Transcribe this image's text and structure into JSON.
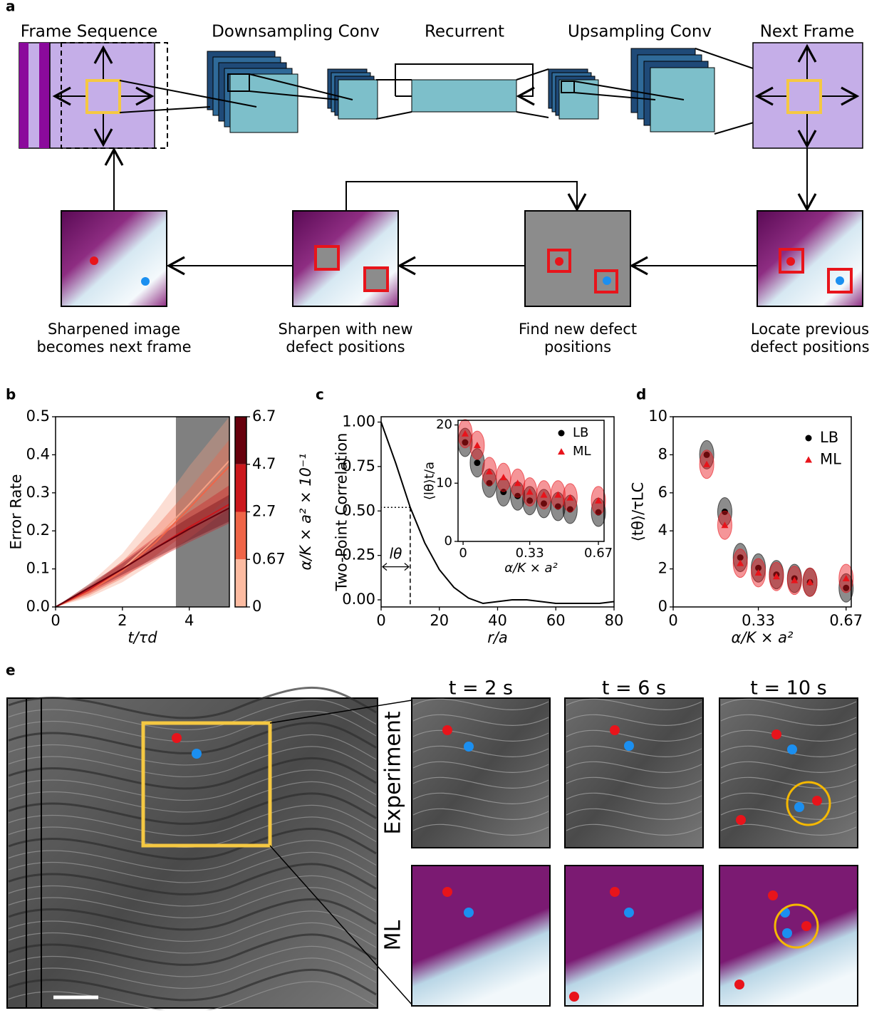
{
  "panel_labels": [
    "a",
    "b",
    "c",
    "d",
    "e"
  ],
  "diagram": {
    "stages": [
      "Frame Sequence",
      "Downsampling Conv",
      "Recurrent",
      "Upsampling Conv",
      "Next Frame"
    ],
    "steps": [
      [
        "Sharpened image",
        "becomes next frame"
      ],
      [
        "Sharpen with new",
        "defect positions"
      ],
      [
        "Find new defect",
        "positions"
      ],
      [
        "Locate previous",
        "defect positions"
      ]
    ]
  },
  "chart_data": [
    {
      "type": "line",
      "ylabel": "Error Rate",
      "xlabel": "t/τd",
      "x": [
        0,
        1,
        2,
        3,
        4,
        5.2
      ],
      "xlim": [
        0,
        5.2
      ],
      "ylim": [
        0,
        0.5
      ],
      "xticks": [
        0,
        2,
        4
      ],
      "yticks": [
        {
          "value": 0,
          "label": "0.0"
        },
        0.1,
        0.2,
        0.3,
        0.4,
        0.5
      ],
      "shaded_region": [
        3.6,
        5.2
      ],
      "shaded_color": "#808080",
      "series": [
        {
          "color": "#f7a184",
          "values": [
            0,
            0.04,
            0.1,
            0.18,
            0.27,
            0.385
          ],
          "lower": [
            0,
            0.025,
            0.065,
            0.12,
            0.18,
            0.26
          ],
          "upper": [
            0,
            0.06,
            0.14,
            0.25,
            0.37,
            0.5
          ]
        },
        {
          "color": "#ef6548",
          "values": [
            0,
            0.04,
            0.095,
            0.17,
            0.26,
            0.37
          ],
          "lower": [
            0,
            0.03,
            0.075,
            0.135,
            0.2,
            0.29
          ],
          "upper": [
            0,
            0.05,
            0.12,
            0.21,
            0.31,
            0.44
          ]
        },
        {
          "color": "#cb181d",
          "values": [
            0,
            0.045,
            0.1,
            0.155,
            0.21,
            0.27
          ],
          "lower": [
            0,
            0.035,
            0.08,
            0.125,
            0.17,
            0.22
          ],
          "upper": [
            0,
            0.055,
            0.12,
            0.185,
            0.25,
            0.32
          ]
        },
        {
          "color": "#67000d",
          "values": [
            0,
            0.05,
            0.1,
            0.155,
            0.205,
            0.26
          ],
          "lower": [
            0,
            0.04,
            0.085,
            0.13,
            0.175,
            0.225
          ],
          "upper": [
            0,
            0.06,
            0.115,
            0.18,
            0.235,
            0.295
          ]
        }
      ],
      "colorbar": {
        "label": "α/K × a² × 10⁻¹",
        "ticks": [
          6.7,
          4.7,
          2.7,
          0.67,
          0
        ],
        "colors": [
          "#67000d",
          "#cb181d",
          "#ef6548",
          "#fcbba1"
        ]
      }
    },
    {
      "type": "line",
      "ylabel": "Two-Point Correlation",
      "xlabel": "r/a",
      "x": [
        0,
        5,
        10,
        15,
        20,
        25,
        30,
        35,
        40,
        45,
        50,
        55,
        60,
        65,
        70,
        75,
        80
      ],
      "values": [
        1,
        0.77,
        0.52,
        0.32,
        0.17,
        0.07,
        0.01,
        -0.02,
        -0.01,
        0,
        0,
        -0.01,
        -0.02,
        -0.02,
        -0.02,
        -0.02,
        -0.01
      ],
      "color": "#000000",
      "xlim": [
        0,
        80
      ],
      "ylim": [
        -0.04,
        1.03
      ],
      "xticks": [
        0,
        20,
        40,
        60,
        80
      ],
      "yticks": [
        {
          "value": 0,
          "label": "0.00"
        },
        {
          "value": 0.25,
          "label": "0.25"
        },
        {
          "value": 0.5,
          "label": "0.50"
        },
        {
          "value": 0.75,
          "label": "0.75"
        },
        {
          "value": 1,
          "label": "1.00"
        }
      ],
      "annotation": {
        "text": "lθ",
        "x": 10,
        "y": 0.52
      },
      "inset": {
        "type": "scatter",
        "ylabel": "⟨lθ⟩t/a",
        "xlabel": "α/K × a²",
        "x": [
          0.01,
          0.07,
          0.13,
          0.2,
          0.27,
          0.33,
          0.4,
          0.47,
          0.53,
          0.67
        ],
        "xlim": [
          -0.025,
          0.698
        ],
        "ylim": [
          0,
          20.8
        ],
        "xticks": [
          0,
          0.33,
          0.67
        ],
        "yticks": [
          0,
          10,
          20
        ],
        "legend": "upper right",
        "series": [
          {
            "name": "LB",
            "color": "#000000",
            "marker": "circle",
            "values": [
              17,
              13.5,
              10,
              8.5,
              7.8,
              7,
              6.5,
              6,
              5.5,
              5
            ]
          },
          {
            "name": "ML",
            "color": "#e8141b",
            "marker": "triangle",
            "values": [
              18.5,
              16.5,
              12,
              11,
              10,
              8.5,
              8,
              8,
              7.5,
              7
            ]
          }
        ]
      }
    },
    {
      "type": "scatter",
      "ylabel": "⟨tθ⟩/τLC",
      "xlabel": "α/K × a²",
      "x": [
        0.13,
        0.2,
        0.26,
        0.33,
        0.4,
        0.47,
        0.53,
        0.67
      ],
      "xlim": [
        0,
        0.69
      ],
      "ylim": [
        0,
        10
      ],
      "xticks": [
        0,
        0.33,
        0.67
      ],
      "yticks": [
        0,
        2,
        4,
        6,
        8,
        10
      ],
      "legend": "upper right",
      "series": [
        {
          "name": "LB",
          "color": "#000000",
          "marker": "circle",
          "values": [
            8,
            5,
            2.6,
            2.05,
            1.7,
            1.5,
            1.3,
            1
          ]
        },
        {
          "name": "ML",
          "color": "#e8141b",
          "marker": "triangle",
          "values": [
            7.5,
            4.3,
            2.3,
            1.8,
            1.6,
            1.4,
            1.3,
            1.5
          ]
        }
      ]
    }
  ],
  "panel_e": {
    "times": [
      "t = 2 s",
      "t = 6 s",
      "t = 10 s"
    ],
    "rows": [
      "Experiment",
      "ML"
    ]
  }
}
